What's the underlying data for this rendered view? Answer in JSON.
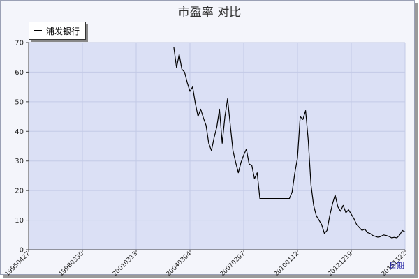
{
  "chart_data": {
    "type": "line",
    "title": "市盈率 对比",
    "xlabel": "日期",
    "ylabel": "",
    "ylim": [
      0,
      70
    ],
    "yticks": [
      0,
      10,
      20,
      30,
      40,
      50,
      60,
      70
    ],
    "xticks": [
      "19950427",
      "19980330",
      "20010313",
      "20040304",
      "20070207",
      "20100112",
      "20121219",
      "20151122"
    ],
    "grid": true,
    "legend": "top-left",
    "colors": {
      "plot_bg": "#dbe0f5",
      "grid": "#c3cae6",
      "line": "#000000",
      "axis": "#444444"
    },
    "series": [
      {
        "name": "浦发银行",
        "x": [
          2.7,
          2.75,
          2.8,
          2.85,
          2.9,
          2.95,
          3.0,
          3.05,
          3.1,
          3.15,
          3.2,
          3.25,
          3.3,
          3.35,
          3.4,
          3.45,
          3.5,
          3.55,
          3.6,
          3.65,
          3.7,
          3.75,
          3.8,
          3.85,
          3.9,
          3.95,
          4.0,
          4.05,
          4.1,
          4.15,
          4.2,
          4.25,
          4.3,
          4.35,
          4.4,
          4.45,
          4.5,
          4.55,
          4.6,
          4.65,
          4.7,
          4.75,
          4.8,
          4.85,
          4.9,
          4.95,
          5.0,
          5.05,
          5.1,
          5.15,
          5.2,
          5.25,
          5.3,
          5.35,
          5.4,
          5.45,
          5.5,
          5.55,
          5.6,
          5.65,
          5.7,
          5.75,
          5.8,
          5.85,
          5.9,
          5.95,
          6.0,
          6.05,
          6.1,
          6.15,
          6.2,
          6.25,
          6.3,
          6.35,
          6.4,
          6.45,
          6.5,
          6.55,
          6.6,
          6.65,
          6.7,
          6.75,
          6.8,
          6.85,
          6.9,
          6.95,
          7.0
        ],
        "values": [
          68.5,
          61.5,
          66.0,
          61.0,
          60.0,
          56.5,
          53.5,
          55.0,
          49.5,
          45.0,
          47.5,
          44.5,
          42.0,
          36.0,
          33.5,
          38.0,
          41.5,
          47.5,
          36.0,
          45.0,
          51.0,
          42.0,
          33.5,
          29.5,
          26.0,
          29.5,
          32.0,
          34.0,
          29.0,
          28.5,
          24.0,
          26.0,
          17.3,
          17.3,
          17.3,
          17.3,
          17.3,
          17.3,
          17.3,
          17.3,
          17.3,
          17.3,
          17.3,
          17.3,
          19.5,
          26.0,
          31.0,
          45.0,
          44.0,
          47.0,
          37.0,
          22.0,
          15.0,
          11.5,
          10.0,
          8.5,
          5.5,
          6.5,
          11.5,
          15.5,
          18.5,
          14.5,
          13.0,
          15.0,
          12.5,
          13.5,
          12.0,
          10.5,
          8.5,
          7.5,
          6.5,
          7.0,
          5.8,
          5.5,
          4.8,
          4.5,
          4.2,
          4.5,
          5.0,
          4.8,
          4.5,
          4.0,
          4.2,
          4.0,
          5.0,
          6.5,
          6.0
        ]
      }
    ]
  }
}
